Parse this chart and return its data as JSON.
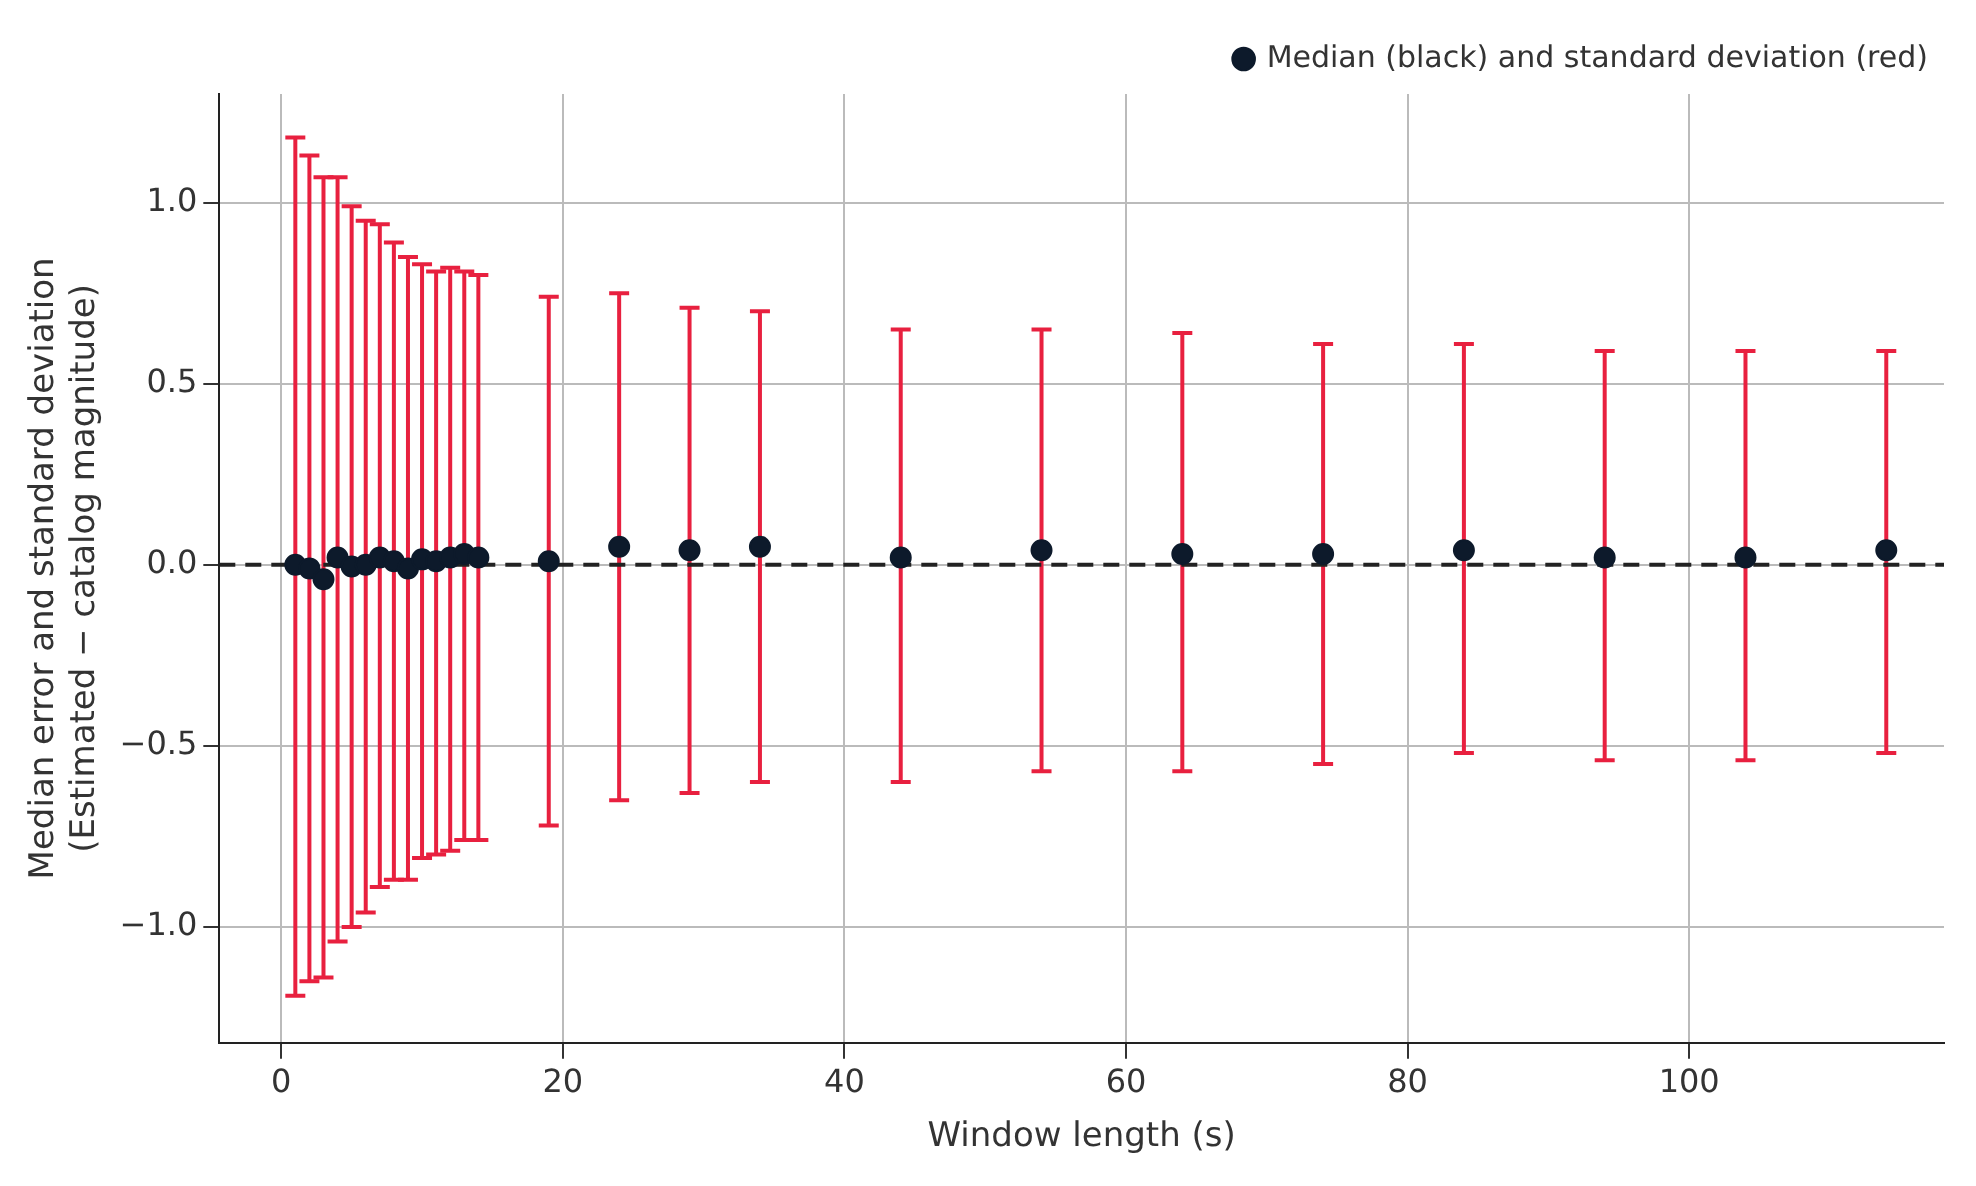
{
  "chart_data": {
    "type": "scatter",
    "xlabel": "Window length (s)",
    "ylabel": "Median error and standard deviation\n(Estimated − catalog magnitude)",
    "x": [
      1,
      2,
      3,
      4,
      5,
      6,
      7,
      8,
      9,
      10,
      11,
      12,
      13,
      14,
      19,
      24,
      29,
      34,
      44,
      54,
      64,
      74,
      84,
      94,
      104,
      114
    ],
    "series": [
      {
        "name": "Median (black) and standard deviation (red)",
        "color": "#0d1a2b",
        "values": [
          0.0,
          -0.01,
          -0.04,
          0.02,
          -0.005,
          0.0,
          0.02,
          0.01,
          -0.01,
          0.015,
          0.01,
          0.02,
          0.03,
          0.02,
          0.01,
          0.05,
          0.04,
          0.05,
          0.02,
          0.04,
          0.03,
          0.03,
          0.04,
          0.02,
          0.02,
          0.04
        ],
        "errors": [
          [
            -1.19,
            1.18
          ],
          [
            -1.15,
            1.13
          ],
          [
            -1.14,
            1.07
          ],
          [
            -1.04,
            1.07
          ],
          [
            -1.0,
            0.99
          ],
          [
            -0.96,
            0.95
          ],
          [
            -0.89,
            0.94
          ],
          [
            -0.87,
            0.89
          ],
          [
            -0.87,
            0.85
          ],
          [
            -0.81,
            0.83
          ],
          [
            -0.8,
            0.81
          ],
          [
            -0.79,
            0.82
          ],
          [
            -0.76,
            0.81
          ],
          [
            -0.76,
            0.8
          ],
          [
            -0.72,
            0.74
          ],
          [
            -0.65,
            0.75
          ],
          [
            -0.63,
            0.71
          ],
          [
            -0.6,
            0.7
          ],
          [
            -0.6,
            0.65
          ],
          [
            -0.57,
            0.65
          ],
          [
            -0.57,
            0.64
          ],
          [
            -0.55,
            0.61
          ],
          [
            -0.52,
            0.61
          ],
          [
            -0.54,
            0.59
          ],
          [
            -0.54,
            0.59
          ],
          [
            -0.52,
            0.59
          ]
        ]
      }
    ],
    "xlim": [
      -4.4,
      118.1
    ],
    "ylim": [
      -1.32,
      1.3
    ],
    "xticks": [
      0,
      20,
      40,
      60,
      80,
      100
    ],
    "yticks": [
      {
        "value": -1,
        "label": "−1.0"
      },
      {
        "value": -0.5,
        "label": "−0.5"
      },
      {
        "value": 0,
        "label": "0.0"
      },
      {
        "value": 0.5,
        "label": "0.5"
      },
      {
        "value": 1,
        "label": "1.0"
      }
    ],
    "ref_lines": [
      {
        "axis": "y",
        "value": 0,
        "color": "#222222",
        "line_style": "dashed"
      }
    ],
    "grid": true,
    "legend": "top right",
    "marker": "circle"
  }
}
